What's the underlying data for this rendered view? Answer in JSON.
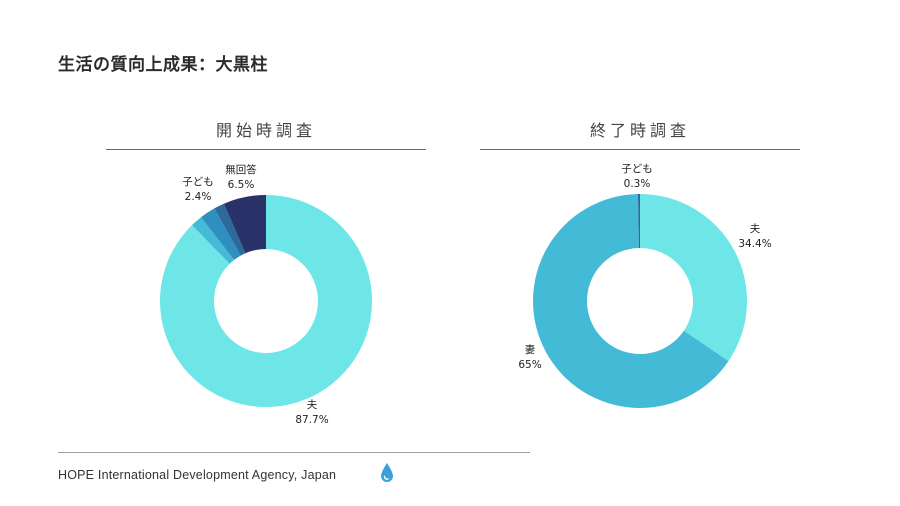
{
  "page_title": "生活の質向上成果：大黒柱",
  "footer_text": "HOPE International Development Agency, Japan",
  "chart_data": [
    {
      "type": "pie",
      "donut": true,
      "title": "開始時調査",
      "slices": [
        {
          "name": "夫",
          "value": 87.7,
          "label_name": "夫",
          "label_value": "87.7%",
          "color": "#6ee6e8"
        },
        {
          "name": "unlabeled-a",
          "value": 1.8,
          "label_name": "",
          "label_value": "",
          "color": "#43bad6"
        },
        {
          "name": "子ども",
          "value": 2.4,
          "label_name": "子ども",
          "label_value": "2.4%",
          "color": "#2f8fbf"
        },
        {
          "name": "unlabeled-b",
          "value": 1.6,
          "label_name": "",
          "label_value": "",
          "color": "#2b6a9b"
        },
        {
          "name": "無回答",
          "value": 6.5,
          "label_name": "無回答",
          "label_value": "6.5%",
          "color": "#2b3169"
        }
      ]
    },
    {
      "type": "pie",
      "donut": true,
      "title": "終了時調査",
      "slices": [
        {
          "name": "夫",
          "value": 34.4,
          "label_name": "夫",
          "label_value": "34.4%",
          "color": "#6ee6e8"
        },
        {
          "name": "妻",
          "value": 65,
          "label_name": "妻",
          "label_value": "65%",
          "color": "#43bad6"
        },
        {
          "name": "子ども",
          "value": 0.3,
          "label_name": "子ども",
          "label_value": "0.3%",
          "color": "#2b6a9b"
        }
      ]
    }
  ]
}
